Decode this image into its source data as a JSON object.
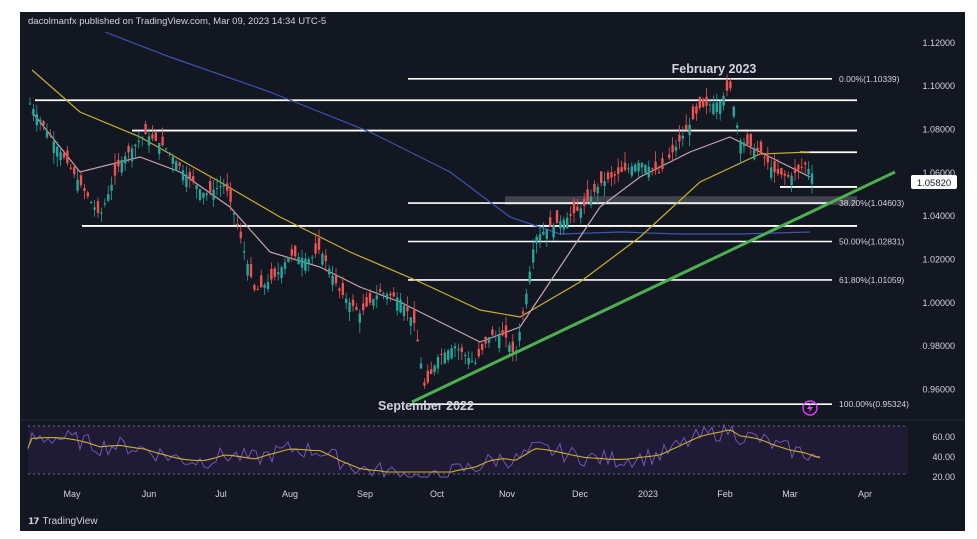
{
  "header": {
    "publisher_text": "dacolmanfx published on TradingView.com, Mar 09, 2023 14:34 UTC-5"
  },
  "footer": {
    "brand": "TradingView",
    "logo_icon": "tradingview-logo-icon"
  },
  "annotations": {
    "high_label": "February 2023",
    "low_label": "September 2022"
  },
  "colors": {
    "background": "#131722",
    "up_candle": "#26a69a",
    "down_candle": "#ef5350",
    "sma_long": "#3f51b5",
    "sma_mid": "#c9b227",
    "sma_short": "#c7a6b0",
    "trendline": "#4caf50",
    "rsi_line": "#7e57c2",
    "rsi_signal": "#c9b227",
    "current_price_badge": "#ffffff"
  },
  "chart_data": {
    "type": "candlestick",
    "price_axis_ticks": [
      "1.12000",
      "1.10000",
      "1.08000",
      "1.06000",
      "1.04000",
      "1.02000",
      "1.00000",
      "0.98000",
      "0.96000"
    ],
    "time_axis_ticks": [
      "May",
      "Jun",
      "Jul",
      "Aug",
      "Sep",
      "Oct",
      "Nov",
      "Dec",
      "2023",
      "Feb",
      "Mar",
      "Apr"
    ],
    "current_price": "1.05820",
    "ylim": [
      0.945,
      1.125
    ],
    "fibonacci_levels": [
      {
        "label": "0.00%(1.10339)",
        "value": 1.10339
      },
      {
        "label": "38.20%(1.04603)",
        "value": 1.04603
      },
      {
        "label": "50.00%(1.02831)",
        "value": 1.02831
      },
      {
        "label": "61.80%(1.01059)",
        "value": 1.01059
      },
      {
        "label": "100.00%(0.95324)",
        "value": 0.95324
      }
    ],
    "horizontal_levels": [
      1.0935,
      1.0795,
      1.0695,
      1.0535,
      1.0355
    ],
    "rsi_panel": {
      "axis_ticks": [
        "60.00",
        "40.00",
        "20.00"
      ],
      "upper_band": 70,
      "lower_band": 30
    }
  }
}
